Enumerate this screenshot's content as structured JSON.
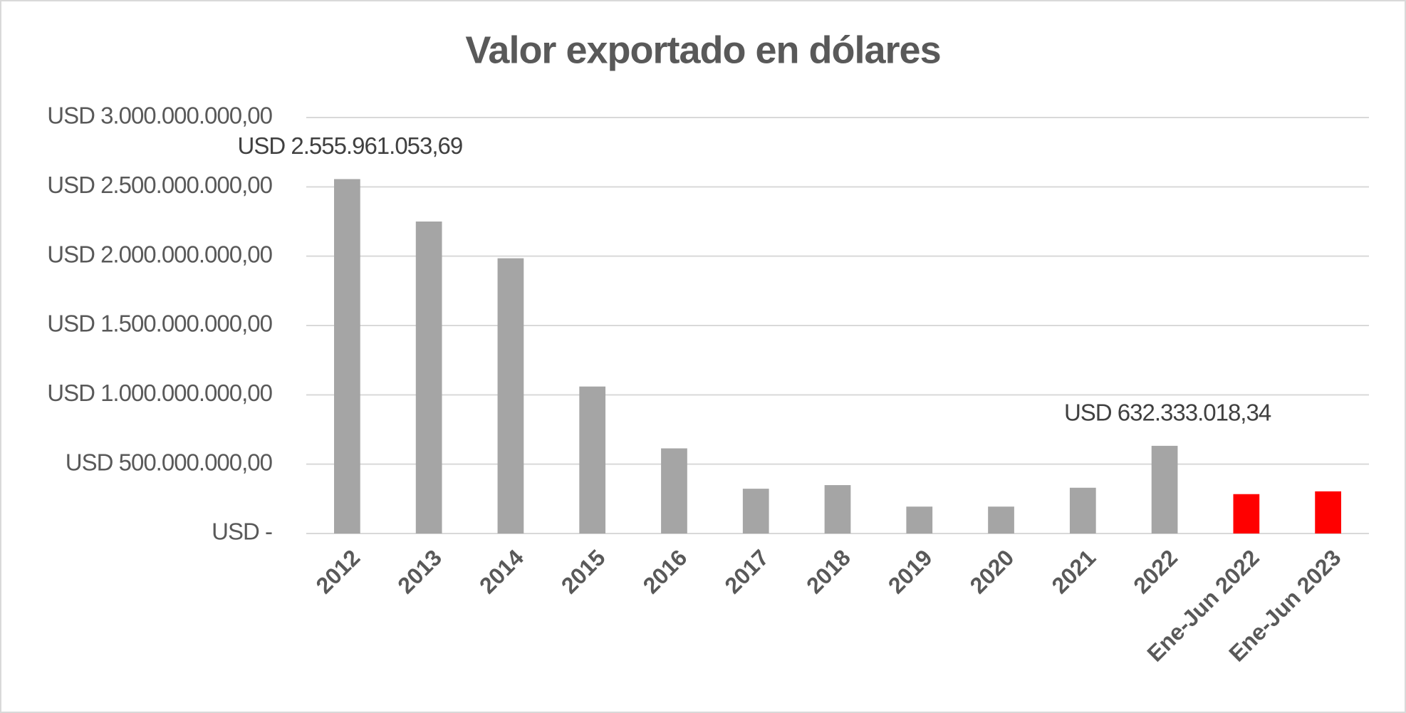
{
  "chart_data": {
    "type": "bar",
    "title": "Valor exportado en dólares",
    "categories": [
      "2012",
      "2013",
      "2014",
      "2015",
      "2016",
      "2017",
      "2018",
      "2019",
      "2020",
      "2021",
      "2022",
      "Ene-Jun 2022",
      "Ene-Jun 2023"
    ],
    "values": [
      2555961053.69,
      2250000000,
      1985000000,
      1060000000,
      614000000,
      323000000,
      349000000,
      194000000,
      194000000,
      330000000,
      632333018.34,
      284000000,
      304000000
    ],
    "value_labels": [
      "USD 2.555.961.053,69",
      null,
      null,
      null,
      null,
      null,
      null,
      null,
      null,
      null,
      "USD 632.333.018,34",
      null,
      null
    ],
    "colors": [
      "#a5a5a5",
      "#a5a5a5",
      "#a5a5a5",
      "#a5a5a5",
      "#a5a5a5",
      "#a5a5a5",
      "#a5a5a5",
      "#a5a5a5",
      "#a5a5a5",
      "#a5a5a5",
      "#a5a5a5",
      "#ff0000",
      "#ff0000"
    ],
    "ylim": [
      0,
      3000000000
    ],
    "yticks": [
      {
        "value": 0,
        "label": "USD -"
      },
      {
        "value": 500000000,
        "label": "USD 500.000.000,00"
      },
      {
        "value": 1000000000,
        "label": "USD 1.000.000.000,00"
      },
      {
        "value": 1500000000,
        "label": "USD 1.500.000.000,00"
      },
      {
        "value": 2000000000,
        "label": "USD 2.000.000.000,00"
      },
      {
        "value": 2500000000,
        "label": "USD 2.500.000.000,00"
      },
      {
        "value": 3000000000,
        "label": "USD 3.000.000.000,00"
      }
    ],
    "grid": true
  }
}
